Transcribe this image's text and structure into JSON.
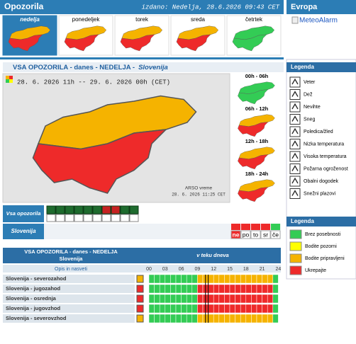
{
  "header": {
    "title": "Opozorila",
    "issued": "izdano: Nedelja, 28.6.2026 09:43 CET",
    "europe": "Evropa",
    "meteoalarm": "MeteoAlarm"
  },
  "days": [
    {
      "label": "nedelja",
      "north": "#f5b300",
      "south": "#ee2a2a"
    },
    {
      "label": "ponedeljek",
      "north": "#f5b300",
      "south": "#ee2a2a"
    },
    {
      "label": "torek",
      "north": "#f5b300",
      "south": "#ee2a2a"
    },
    {
      "label": "sreda",
      "north": "#f5b300",
      "south": "#ee2a2a"
    },
    {
      "label": "četrtek",
      "north": "#33cc55",
      "south": "#33cc55"
    }
  ],
  "section": {
    "title": "VSA OPOZORILA - danes - NEDELJA -",
    "region": "Slovenija"
  },
  "map": {
    "period": "28. 6. 2026 11h -- 29. 6. 2026 00h (CET)",
    "credit": "ARSO vreme",
    "stamp": "28. 6. 2026 11:25 CET",
    "north": "#f5b300",
    "south": "#ee2a2a"
  },
  "periods": [
    {
      "label": "00h - 06h",
      "north": "#33cc55",
      "south": "#33cc55"
    },
    {
      "label": "06h - 12h",
      "north": "#f5b300",
      "south": "#ee2a2a"
    },
    {
      "label": "12h - 18h",
      "north": "#f5b300",
      "south": "#ee2a2a"
    },
    {
      "label": "18h - 24h",
      "north": "#f5b300",
      "south": "#ee2a2a"
    }
  ],
  "all_warnings": "Vsa opozorila",
  "region_row": "Slovenija",
  "day_buttons": [
    "ne",
    "po",
    "to",
    "sr",
    "če"
  ],
  "legend": {
    "title": "Legenda",
    "items": [
      "Veter",
      "Dež",
      "Nevihte",
      "Sneg",
      "Poledica/žled",
      "Nizka temperatura",
      "Visoka temperatura",
      "Požarna ogroženost",
      "Obalni dogodek",
      "Snežni plazovi"
    ]
  },
  "levels": {
    "title": "Legenda",
    "items": [
      {
        "name": "Brez posebnosti",
        "color": "#33cc55"
      },
      {
        "name": "Bodite pozorni",
        "color": "#ffff00"
      },
      {
        "name": "Bodite pripravljeni",
        "color": "#f5b300"
      },
      {
        "name": "Ukrepajte",
        "color": "#ee2a2a"
      }
    ]
  },
  "table": {
    "title": "VSA OPOZORILA - danes - NEDELJA",
    "subtitle": "Slovenija",
    "timeline": "v teku dneva",
    "desc": "Opis in nasveti",
    "hours": [
      "00",
      "03",
      "06",
      "09",
      "12",
      "15",
      "18",
      "21",
      "24"
    ],
    "rows": [
      {
        "name": "Slovenija - severozahod",
        "levels": [
          0,
          0,
          0,
          0,
          0,
          0,
          0,
          0,
          0,
          2,
          2,
          2,
          2,
          2,
          2,
          2,
          2,
          2,
          2,
          2,
          2,
          2,
          2,
          0
        ]
      },
      {
        "name": "Slovenija - jugozahod",
        "levels": [
          0,
          0,
          0,
          0,
          0,
          0,
          0,
          0,
          0,
          3,
          3,
          3,
          3,
          3,
          3,
          3,
          3,
          3,
          3,
          3,
          3,
          3,
          3,
          0
        ]
      },
      {
        "name": "Slovenija - osrednja",
        "levels": [
          0,
          0,
          0,
          0,
          0,
          0,
          0,
          0,
          0,
          3,
          3,
          3,
          3,
          3,
          3,
          3,
          3,
          3,
          3,
          3,
          3,
          3,
          3,
          0
        ]
      },
      {
        "name": "Slovenija - jugovzhod",
        "levels": [
          0,
          0,
          0,
          0,
          0,
          0,
          0,
          0,
          0,
          3,
          3,
          3,
          3,
          3,
          3,
          3,
          3,
          3,
          3,
          3,
          3,
          3,
          3,
          0
        ]
      },
      {
        "name": "Slovenija - severovzhod",
        "levels": [
          0,
          0,
          0,
          0,
          0,
          0,
          0,
          0,
          0,
          2,
          2,
          2,
          2,
          2,
          2,
          2,
          2,
          2,
          2,
          2,
          2,
          2,
          2,
          0
        ]
      }
    ]
  }
}
